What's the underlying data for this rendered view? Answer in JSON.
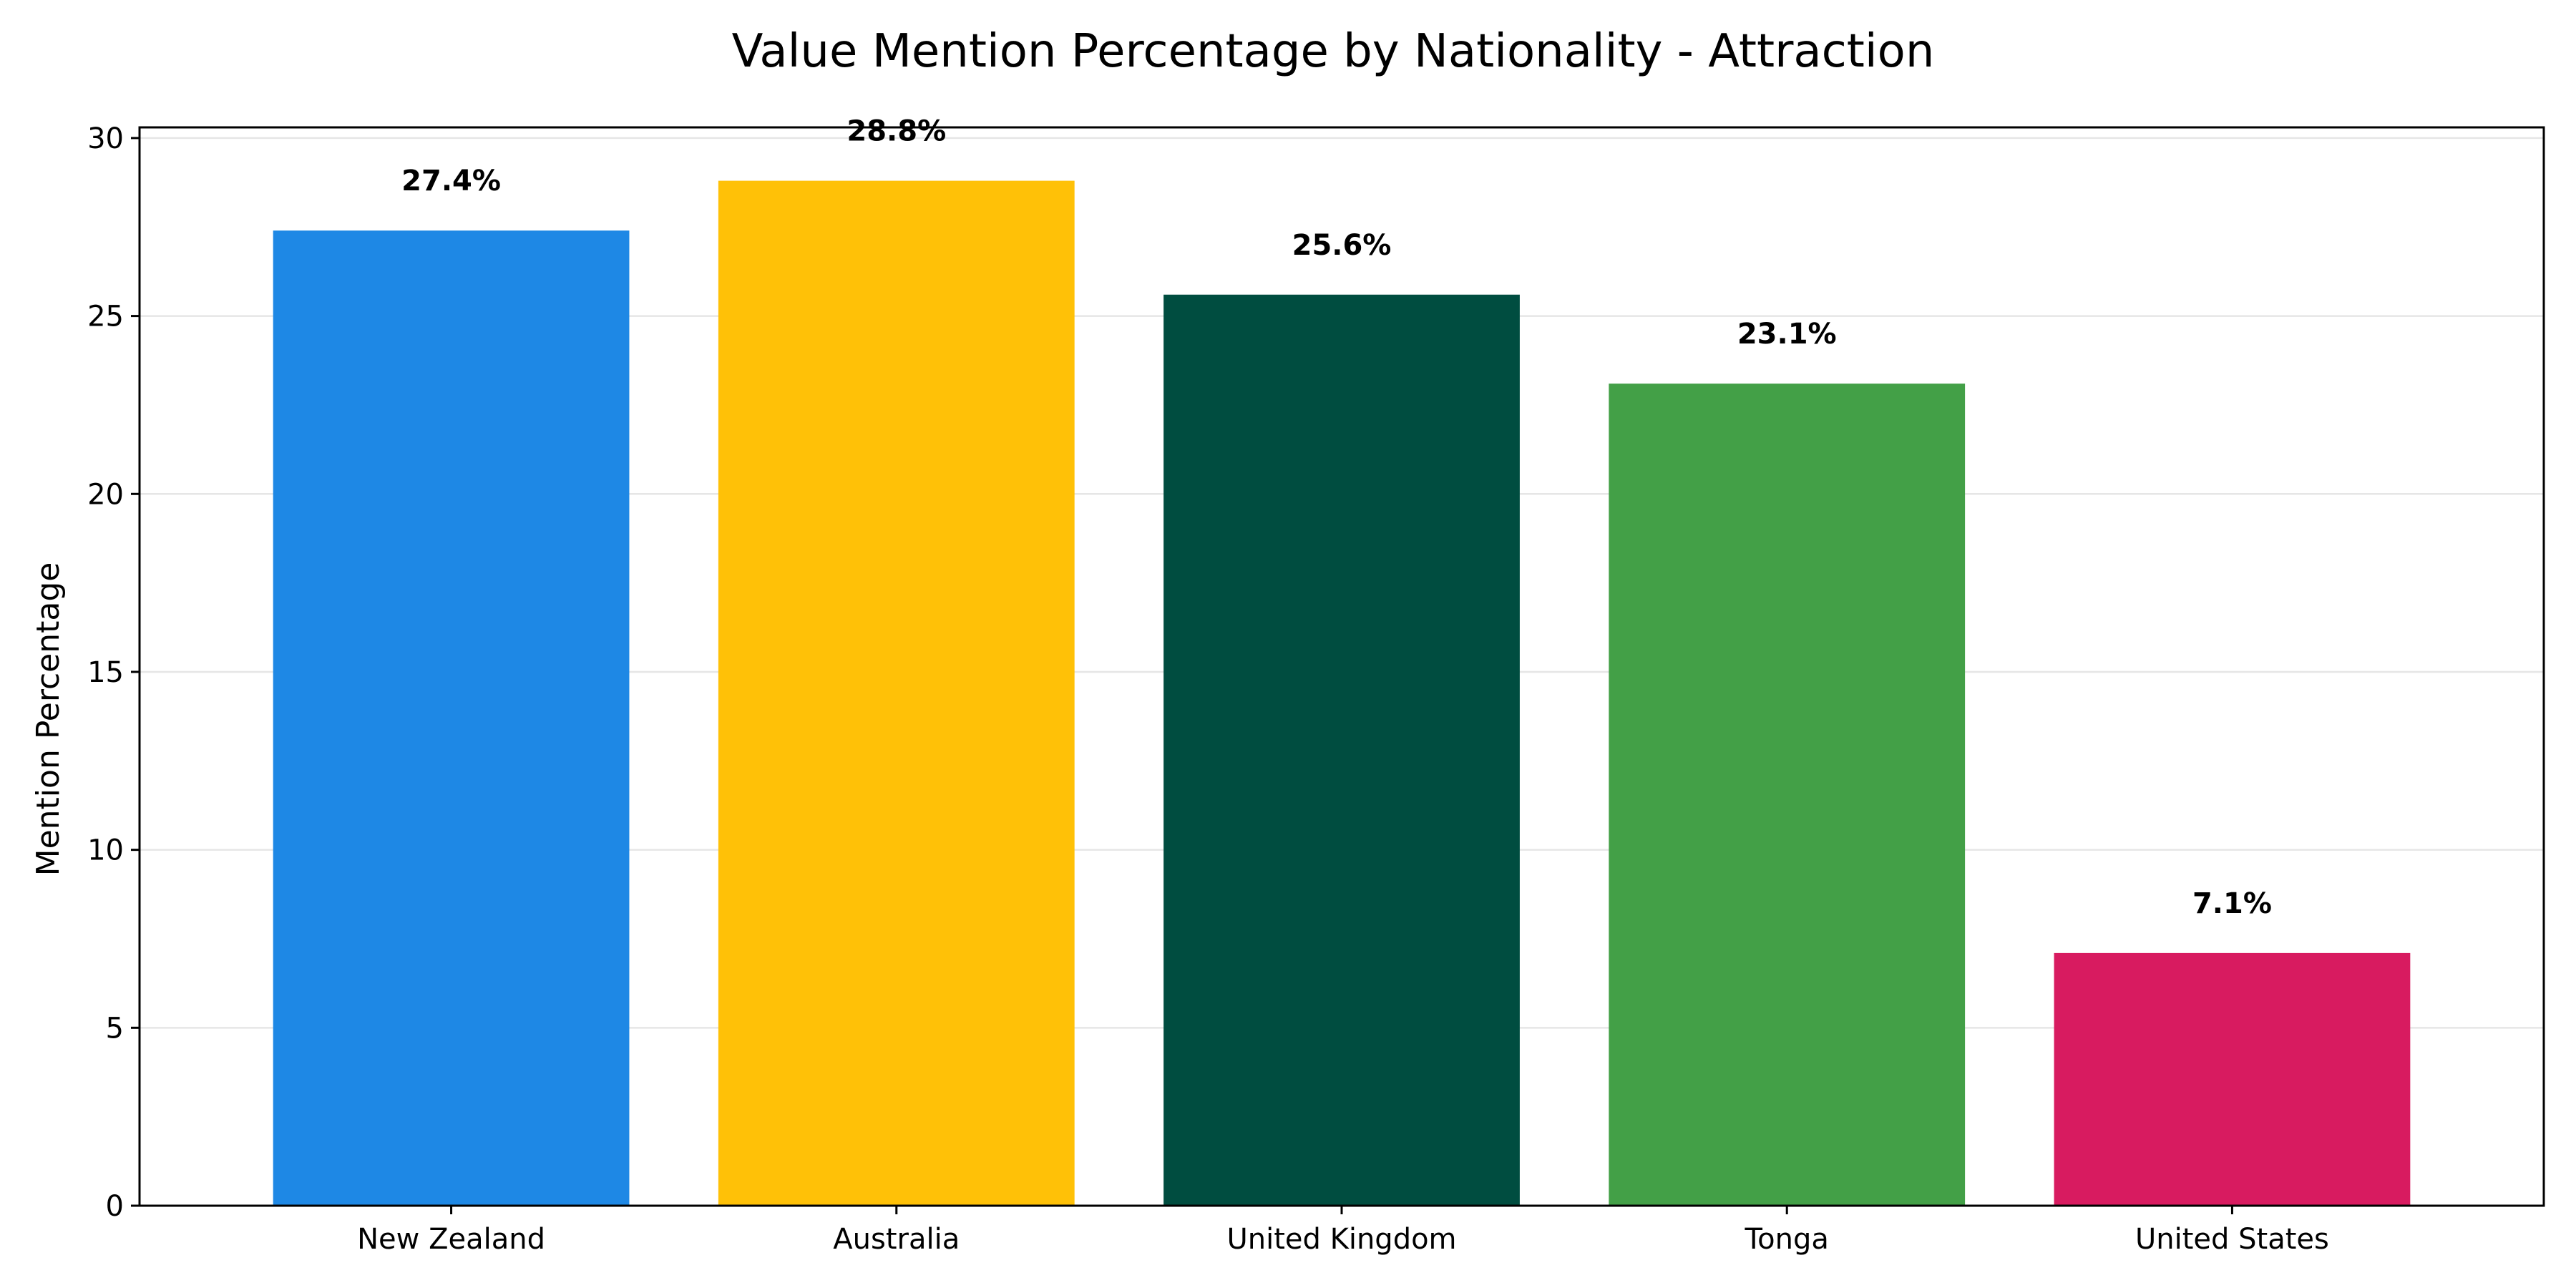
{
  "chart_data": {
    "type": "bar",
    "title": "Value Mention Percentage by Nationality - Attraction",
    "xlabel": "",
    "ylabel": "Mention Percentage",
    "categories": [
      "New Zealand",
      "Australia",
      "United Kingdom",
      "Tonga",
      "United States"
    ],
    "values": [
      27.4,
      28.8,
      25.6,
      23.1,
      7.1
    ],
    "data_labels": [
      "27.4%",
      "28.8%",
      "25.6%",
      "23.1%",
      "7.1%"
    ],
    "colors": [
      "#1e88e5",
      "#ffc107",
      "#004d40",
      "#43a047",
      "#d81b60"
    ],
    "ylim": [
      0,
      30.3
    ],
    "yticks": [
      0,
      5,
      10,
      15,
      20,
      25,
      30
    ],
    "grid": true,
    "legend": "none"
  }
}
